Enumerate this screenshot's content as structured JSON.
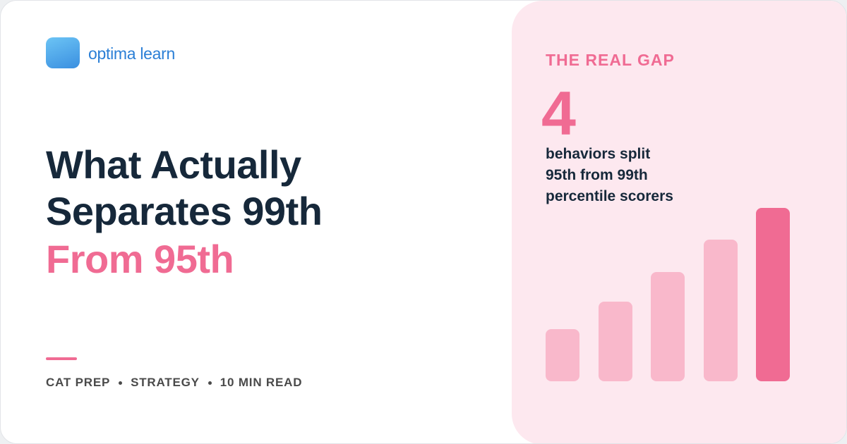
{
  "brand": {
    "name": "optima learn"
  },
  "headline": {
    "lines": [
      "What Actually",
      "Separates 99th"
    ],
    "highlight": "From 95th"
  },
  "tags": [
    "CAT PREP",
    "STRATEGY",
    "10 MIN READ"
  ],
  "panel": {
    "kicker": "THE REAL GAP",
    "stat": 4,
    "lines": [
      "behaviors split",
      "95th from 99th",
      "percentile scorers"
    ]
  }
}
